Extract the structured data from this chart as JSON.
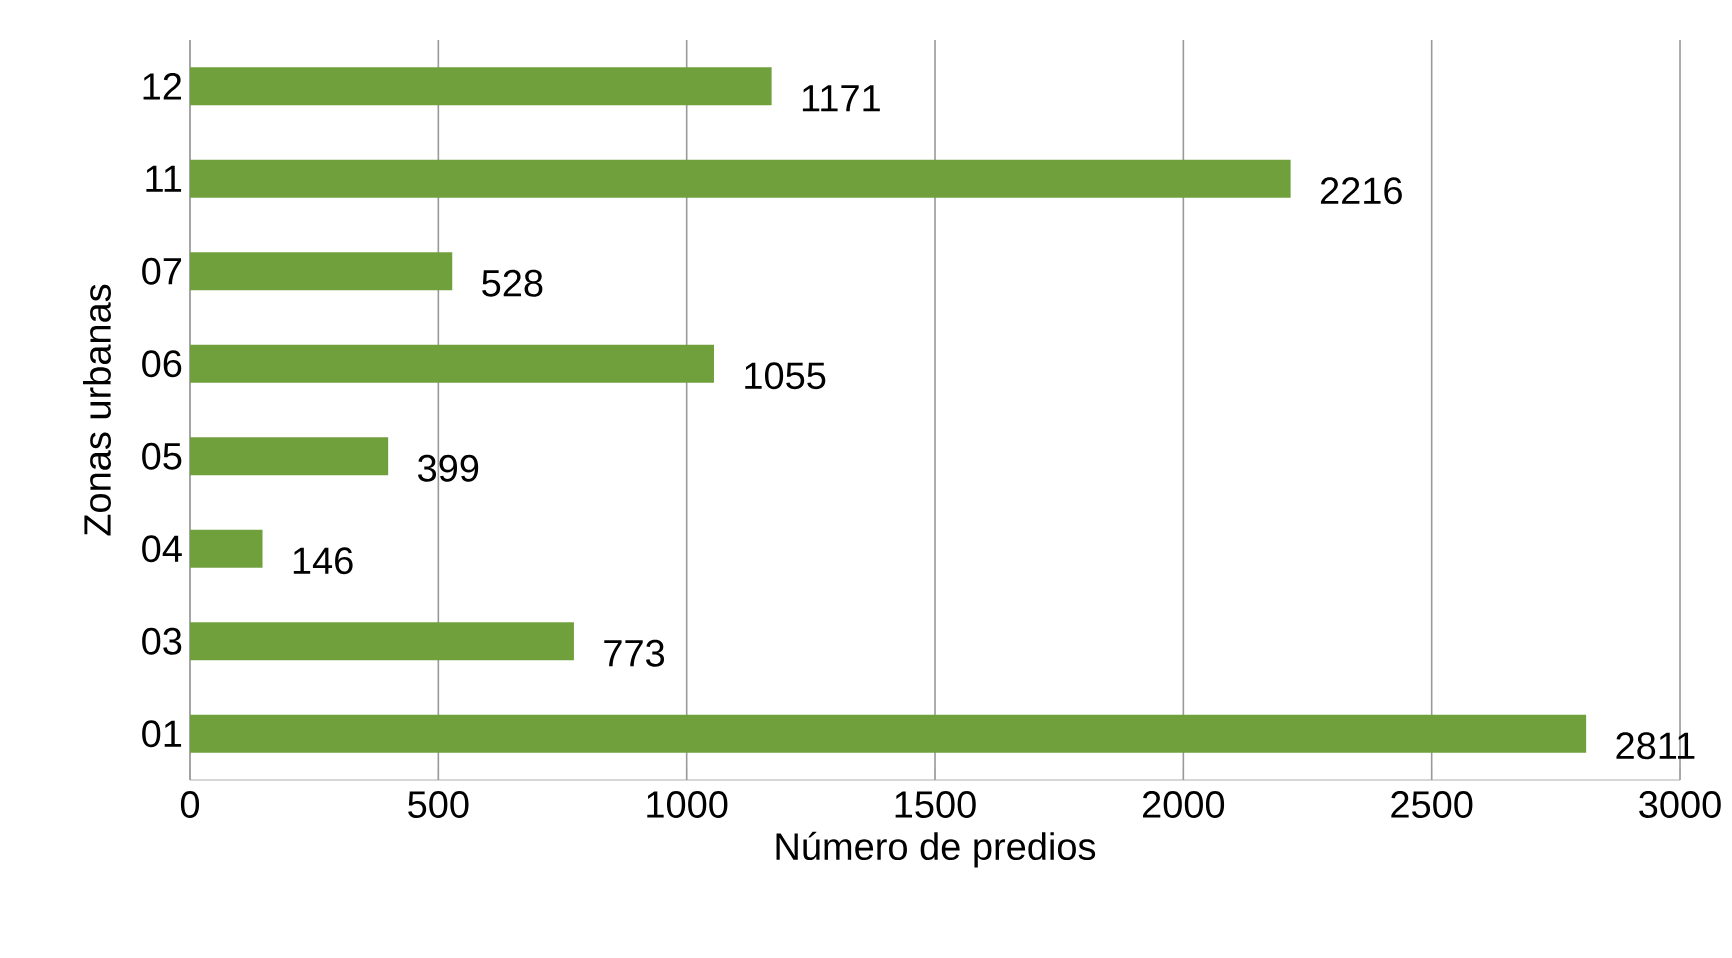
{
  "chart_data": {
    "type": "bar",
    "orientation": "horizontal",
    "xlabel": "Número de predios",
    "ylabel": "Zonas urbanas",
    "categories": [
      "12",
      "11",
      "07",
      "06",
      "05",
      "04",
      "03",
      "01"
    ],
    "values": [
      1171,
      2216,
      528,
      1055,
      399,
      146,
      773,
      2811
    ],
    "color": "#70a03c",
    "data_labels": true,
    "grid": "x",
    "xlim": [
      0,
      3000
    ],
    "xticks": [
      0,
      500,
      1000,
      1500,
      2000,
      2500,
      3000
    ]
  }
}
